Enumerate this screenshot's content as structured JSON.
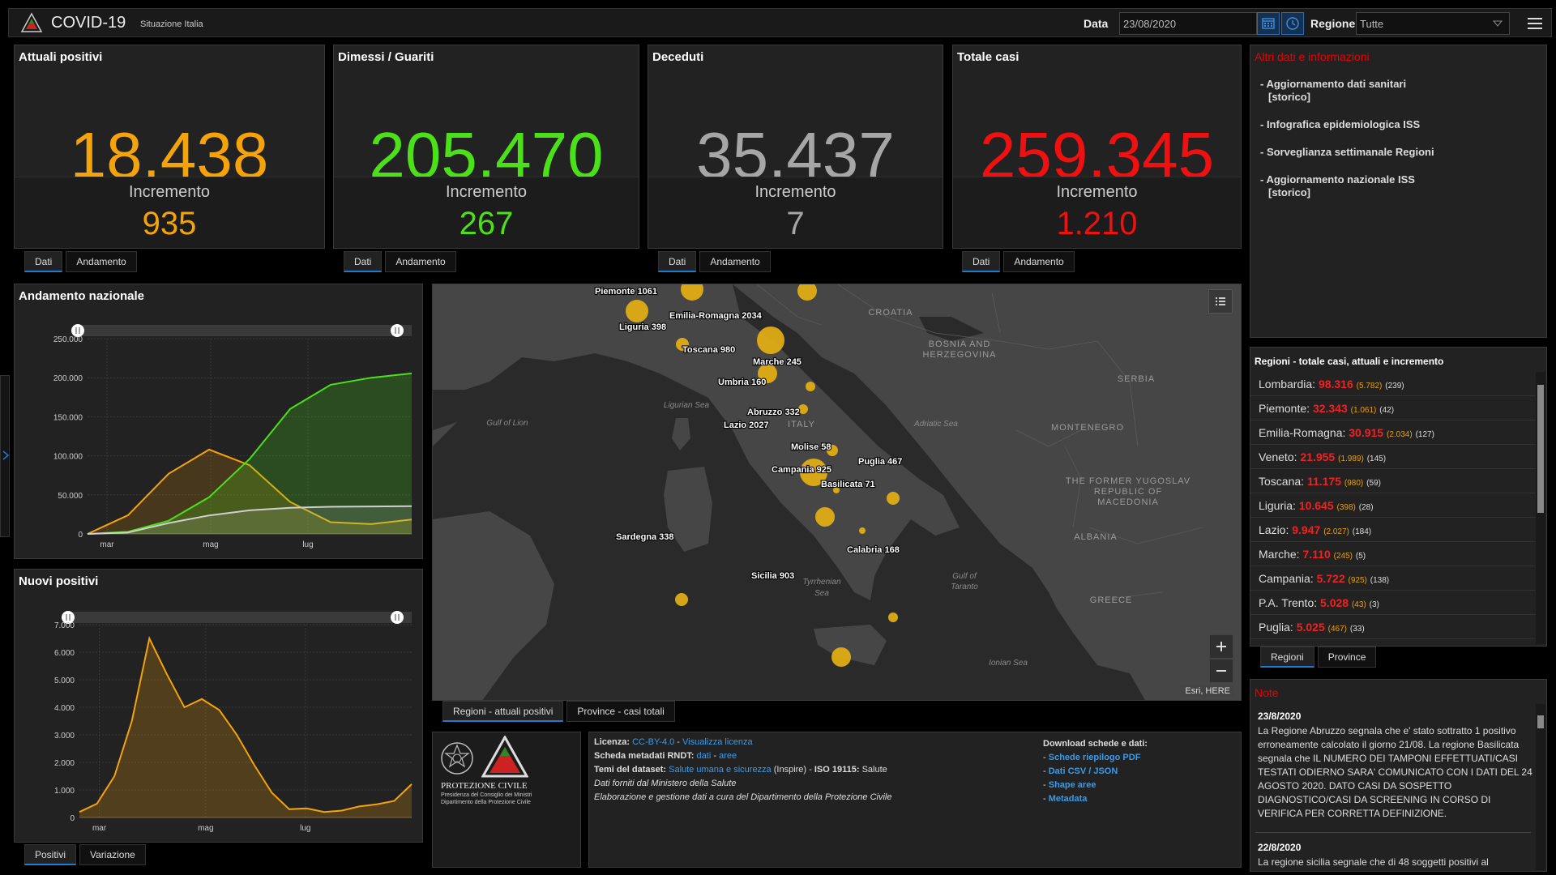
{
  "header": {
    "title": "COVID-19",
    "subtitle": "Situazione Italia",
    "date_label": "Data",
    "date_value": "23/08/2020",
    "region_label": "Regione",
    "region_value": "Tutte"
  },
  "stats": [
    {
      "title": "Attuali positivi",
      "value": "18.438",
      "inc_label": "Incremento",
      "inc_value": "935",
      "color": "#f5a30b"
    },
    {
      "title": "Dimessi / Guariti",
      "value": "205.470",
      "inc_label": "Incremento",
      "inc_value": "267",
      "color": "#4ce01a"
    },
    {
      "title": "Deceduti",
      "value": "35.437",
      "inc_label": "Incremento",
      "inc_value": "7",
      "color": "#a6a6a6"
    },
    {
      "title": "Totale casi",
      "value": "259.345",
      "inc_label": "Incremento",
      "inc_value": "1.210",
      "color": "#f01010"
    }
  ],
  "stat_tabs": {
    "dati": "Dati",
    "andamento": "Andamento"
  },
  "info": {
    "title": "Altri dati e informazioni",
    "items": [
      {
        "text": "- Aggiornamento dati sanitari",
        "sub": "[storico]"
      },
      {
        "text": "- Infografica epidemiologica ISS",
        "sub": ""
      },
      {
        "text": "- Sorveglianza settimanale Regioni",
        "sub": ""
      },
      {
        "text": "- Aggiornamento nazionale ISS",
        "sub": "[storico]"
      }
    ]
  },
  "andamento": {
    "title": "Andamento nazionale",
    "yticks": [
      "250.000",
      "200.000",
      "150.000",
      "100.000",
      "50.000",
      "0"
    ],
    "xticks": [
      "mar",
      "mag",
      "lug"
    ]
  },
  "nuovi": {
    "title": "Nuovi positivi",
    "yticks": [
      "7.000",
      "6.000",
      "5.000",
      "4.000",
      "3.000",
      "2.000",
      "1.000",
      "0"
    ],
    "xticks": [
      "mar",
      "mag",
      "lug"
    ],
    "tab_positivi": "Positivi",
    "tab_variazione": "Variazione"
  },
  "chart_data": [
    {
      "type": "area",
      "title": "Andamento nazionale",
      "x": [
        "24/02",
        "15/03",
        "01/04",
        "19/04",
        "08/05",
        "01/06",
        "01/07",
        "01/08",
        "23/08"
      ],
      "ylim": [
        0,
        250000
      ],
      "series": [
        {
          "values": [
            0,
            24000,
            77000,
            108000,
            88000,
            41000,
            15000,
            12500,
            18438
          ]
        },
        {
          "values": [
            0,
            2700,
            16800,
            47000,
            96000,
            160000,
            191000,
            200000,
            205470
          ]
        },
        {
          "values": [
            0,
            1800,
            13900,
            23660,
            30200,
            33500,
            34800,
            35150,
            35437
          ]
        }
      ]
    },
    {
      "type": "area",
      "title": "Nuovi positivi",
      "x": [
        "24/02",
        "01/03",
        "08/03",
        "15/03",
        "21/03",
        "25/03",
        "31/03",
        "05/04",
        "10/04",
        "20/04",
        "01/05",
        "15/05",
        "01/06",
        "15/06",
        "01/07",
        "15/07",
        "01/08",
        "10/08",
        "18/08",
        "23/08"
      ],
      "ylim": [
        0,
        7000
      ],
      "series": [
        {
          "values": [
            200,
            500,
            1500,
            3500,
            6500,
            5200,
            4000,
            4300,
            3900,
            3000,
            1900,
            900,
            300,
            330,
            200,
            250,
            400,
            480,
            600,
            1210
          ]
        }
      ]
    }
  ],
  "map": {
    "tab_regioni": "Regioni - attuali positivi",
    "tab_province": "Province - casi totali",
    "attribution": "Esri, HERE",
    "countries": [
      "CROATIA",
      "BOSNIA AND",
      "HERZEGOVINA",
      "SERBIA",
      "MONTENEGRO",
      "ITALY",
      "ALBANIA",
      "GREECE",
      "THE FORMER YUGOSLAV",
      "REPUBLIC OF",
      "MACEDONIA"
    ],
    "seas": [
      "Gulf of Lion",
      "Ligurian Sea",
      "Adriatic Sea",
      "Tyrrhenian",
      "Sea",
      "Gulf of",
      "Taranto",
      "Ionian Sea"
    ],
    "regions": [
      {
        "label": "Piemonte 1061"
      },
      {
        "label": "Liguria 398"
      },
      {
        "label": "Emilia-Romagna 2034"
      },
      {
        "label": "Toscana 980"
      },
      {
        "label": "Marche 245"
      },
      {
        "label": "Umbria 160"
      },
      {
        "label": "Abruzzo 332"
      },
      {
        "label": "Lazio 2027"
      },
      {
        "label": "Molise 58"
      },
      {
        "label": "Puglia 467"
      },
      {
        "label": "Campania 925"
      },
      {
        "label": "Basilicata 71"
      },
      {
        "label": "Sardegna 338"
      },
      {
        "label": "Calabria 168"
      },
      {
        "label": "Sicilia 903"
      }
    ]
  },
  "regions_list": {
    "title": "Regioni - totale casi, attuali e incremento",
    "rows": [
      {
        "name": "Lombardia:",
        "total": "98.316",
        "active": "(5.782)",
        "inc": "(239)"
      },
      {
        "name": "Piemonte:",
        "total": "32.343",
        "active": "(1.061)",
        "inc": "(42)"
      },
      {
        "name": "Emilia-Romagna:",
        "total": "30.915",
        "active": "(2.034)",
        "inc": "(127)"
      },
      {
        "name": "Veneto:",
        "total": "21.955",
        "active": "(1.989)",
        "inc": "(145)"
      },
      {
        "name": "Toscana:",
        "total": "11.175",
        "active": "(980)",
        "inc": "(59)"
      },
      {
        "name": "Liguria:",
        "total": "10.645",
        "active": "(398)",
        "inc": "(28)"
      },
      {
        "name": "Lazio:",
        "total": "9.947",
        "active": "(2.027)",
        "inc": "(184)"
      },
      {
        "name": "Marche:",
        "total": "7.110",
        "active": "(245)",
        "inc": "(5)"
      },
      {
        "name": "Campania:",
        "total": "5.722",
        "active": "(925)",
        "inc": "(138)"
      },
      {
        "name": "P.A. Trento:",
        "total": "5.028",
        "active": "(43)",
        "inc": "(3)"
      },
      {
        "name": "Puglia:",
        "total": "5.025",
        "active": "(467)",
        "inc": "(33)"
      }
    ],
    "tab_regioni": "Regioni",
    "tab_province": "Province"
  },
  "notes": {
    "title": "Note",
    "entries": [
      {
        "date": "23/8/2020",
        "text": "La Regione Abruzzo segnala che e' stato sottratto 1 positivo erroneamente calcolato il giorno 21/08. La regione Basilicata segnala che IL NUMERO DEI TAMPONI EFFETTUATI/CASI TESTATI ODIERNO SARA' COMUNICATO CON I DATI DEL 24 AGOSTO 2020. DATO CASI DA SOSPETTO DIAGNOSTICO/CASI DA SCREENING IN CORSO DI VERIFICA PER CORRETTA DEFINIZIONE."
      },
      {
        "date": "22/8/2020",
        "text": "La regione sicilia segnale che di 48 soggetti positivi al"
      }
    ]
  },
  "footer": {
    "logo_title": "PROTEZIONE CIVILE",
    "logo_sub1": "Presidenza del Consiglio dei Ministri",
    "logo_sub2": "Dipartimento della Protezione Civile",
    "lic_label": "Licenza:",
    "lic_val": "CC-BY-4.0",
    "lic_sep": " - ",
    "lic_link": "Visualizza licenza",
    "meta_label": "Scheda metadati RNDT:",
    "meta_dati": "dati",
    "meta_sep": " - ",
    "meta_aree": "aree",
    "temi_label": "Temi del dataset:",
    "temi_link": "Salute umana e sicurezza",
    "temi_rest": " (Inspire) - ",
    "iso_label": "ISO 19115:",
    "iso_val": " Salute",
    "line4": "Dati forniti dal Ministero della Salute",
    "line5": "Elaborazione e gestione dati a cura del Dipartimento della Protezione Civile",
    "dl_title": "Download schede e dati:",
    "dl_links": [
      "Schede riepilogo PDF",
      "Dati CSV / JSON",
      "Shape aree",
      "Metadata"
    ]
  }
}
